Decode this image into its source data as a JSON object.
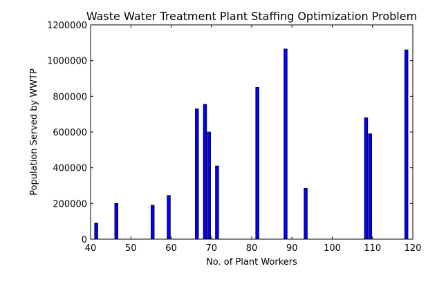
{
  "chart_data": {
    "type": "bar",
    "title": "Waste Water Treatment Plant Staffing Optimization Problem",
    "xlabel": "No. of Plant Workers",
    "ylabel": "Population Served by WWTP",
    "xlim": [
      40,
      120
    ],
    "ylim": [
      0,
      1200000
    ],
    "xticks": [
      40,
      50,
      60,
      70,
      80,
      90,
      100,
      110,
      120
    ],
    "yticks": [
      0,
      200000,
      400000,
      600000,
      800000,
      1000000,
      1200000
    ],
    "grid": false,
    "bar_color": "#0000ff",
    "bar_edge_color": "#000000",
    "bar_width": 0.8,
    "x": [
      41,
      46,
      55,
      59,
      66,
      68,
      69,
      71,
      81,
      88,
      93,
      108,
      109,
      118
    ],
    "values": [
      90000,
      200000,
      190000,
      245000,
      730000,
      755000,
      600000,
      410000,
      850000,
      1065000,
      285000,
      680000,
      590000,
      1060000
    ]
  }
}
